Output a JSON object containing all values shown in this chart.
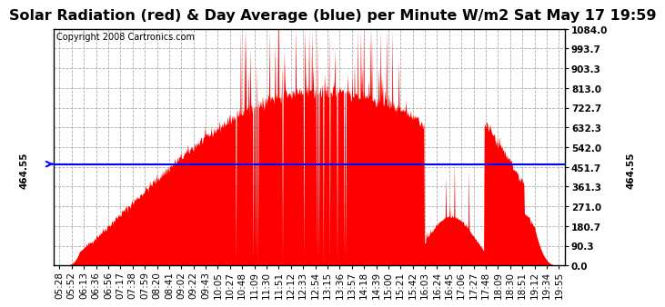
{
  "title": "Solar Radiation (red) & Day Average (blue) per Minute W/m2 Sat May 17 19:59",
  "copyright_text": "Copyright 2008 Cartronics.com",
  "y_min": 0.0,
  "y_max": 1084.0,
  "y_ticks": [
    0.0,
    90.3,
    180.7,
    271.0,
    361.3,
    451.7,
    542.0,
    632.3,
    722.7,
    813.0,
    903.3,
    993.7,
    1084.0
  ],
  "day_average": 464.55,
  "fill_color": "#ff0000",
  "line_color": "#0000ff",
  "background_color": "#ffffff",
  "x_tick_labels": [
    "05:28",
    "05:52",
    "06:13",
    "06:36",
    "06:56",
    "07:17",
    "07:38",
    "07:59",
    "08:20",
    "08:41",
    "09:02",
    "09:22",
    "09:43",
    "10:05",
    "10:27",
    "10:48",
    "11:09",
    "11:30",
    "11:51",
    "12:12",
    "12:33",
    "12:54",
    "13:15",
    "13:36",
    "13:57",
    "14:18",
    "14:39",
    "15:00",
    "15:21",
    "15:42",
    "16:03",
    "16:24",
    "16:45",
    "17:06",
    "17:27",
    "17:48",
    "18:09",
    "18:30",
    "18:51",
    "19:12",
    "19:34",
    "19:55"
  ],
  "title_fontsize": 11.5,
  "tick_fontsize": 7.5,
  "copyright_fontsize": 7,
  "avg_label": "464.55"
}
